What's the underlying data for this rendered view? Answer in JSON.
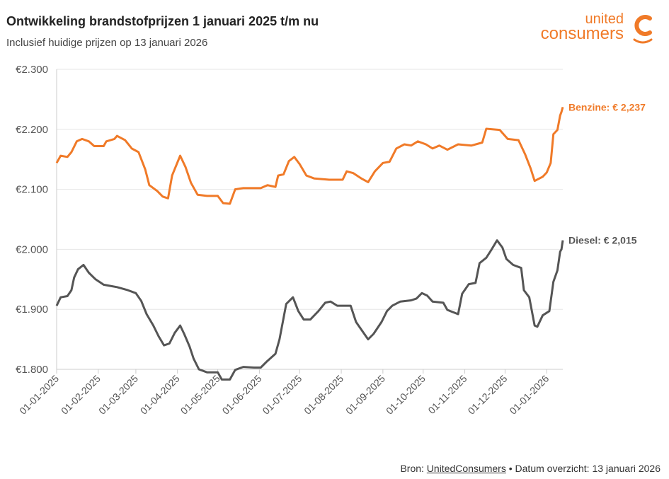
{
  "header": {
    "title": "Ontwikkeling brandstofprijzen 1 januari 2025 t/m nu",
    "subtitle": "Inclusief huidige prijzen op 13 januari 2026"
  },
  "logo": {
    "line1": "united",
    "line2": "consumers",
    "color": "#F07A28"
  },
  "footer": {
    "prefix": "Bron: ",
    "link": "UnitedConsumers",
    "suffix": " • Datum overzicht: 13 januari 2026"
  },
  "chart_data": {
    "type": "line",
    "title": "Ontwikkeling brandstofprijzen 1 januari 2025 t/m nu",
    "subtitle": "Inclusief huidige prijzen op 13 januari 2026",
    "xlim": [
      "2025-01-01",
      "2026-01-13"
    ],
    "ylim": [
      1.8,
      2.3
    ],
    "y_ticks": [
      "€2.300",
      "€2.200",
      "€2.100",
      "€2.000",
      "€1.900",
      "€1.800"
    ],
    "y_tick_values": [
      2.3,
      2.2,
      2.1,
      2.0,
      1.9,
      1.8
    ],
    "x_ticks": [
      "01-01-2025",
      "01-02-2025",
      "01-03-2025",
      "01-04-2025",
      "01-05-2025",
      "01-06-2025",
      "01-07-2025",
      "01-08-2025",
      "01-09-2025",
      "01-10-2025",
      "01-11-2025",
      "01-12-2025",
      "01-01-2026"
    ],
    "x_tick_dates": [
      "2025-01-01",
      "2025-02-01",
      "2025-03-01",
      "2025-04-01",
      "2025-05-01",
      "2025-06-01",
      "2025-07-01",
      "2025-08-01",
      "2025-09-01",
      "2025-10-01",
      "2025-11-01",
      "2025-12-01",
      "2026-01-01"
    ],
    "grid": "horizontal",
    "series": [
      {
        "name": "Benzine",
        "label": "Benzine: € 2,237",
        "color": "#F07A28",
        "points": [
          [
            "2025-01-01",
            2.144
          ],
          [
            "2025-01-04",
            2.156
          ],
          [
            "2025-01-09",
            2.154
          ],
          [
            "2025-01-12",
            2.162
          ],
          [
            "2025-01-16",
            2.18
          ],
          [
            "2025-01-20",
            2.184
          ],
          [
            "2025-01-25",
            2.18
          ],
          [
            "2025-01-29",
            2.172
          ],
          [
            "2025-02-05",
            2.172
          ],
          [
            "2025-02-07",
            2.18
          ],
          [
            "2025-02-13",
            2.184
          ],
          [
            "2025-02-15",
            2.189
          ],
          [
            "2025-02-21",
            2.182
          ],
          [
            "2025-02-26",
            2.168
          ],
          [
            "2025-03-03",
            2.162
          ],
          [
            "2025-03-08",
            2.133
          ],
          [
            "2025-03-11",
            2.107
          ],
          [
            "2025-03-17",
            2.097
          ],
          [
            "2025-03-21",
            2.088
          ],
          [
            "2025-03-25",
            2.085
          ],
          [
            "2025-03-28",
            2.123
          ],
          [
            "2025-04-03",
            2.156
          ],
          [
            "2025-04-07",
            2.137
          ],
          [
            "2025-04-11",
            2.111
          ],
          [
            "2025-04-16",
            2.091
          ],
          [
            "2025-04-23",
            2.089
          ],
          [
            "2025-05-01",
            2.089
          ],
          [
            "2025-05-05",
            2.077
          ],
          [
            "2025-05-10",
            2.076
          ],
          [
            "2025-05-14",
            2.1
          ],
          [
            "2025-05-20",
            2.102
          ],
          [
            "2025-06-02",
            2.102
          ],
          [
            "2025-06-07",
            2.107
          ],
          [
            "2025-06-13",
            2.104
          ],
          [
            "2025-06-15",
            2.123
          ],
          [
            "2025-06-19",
            2.125
          ],
          [
            "2025-06-23",
            2.147
          ],
          [
            "2025-06-27",
            2.154
          ],
          [
            "2025-07-01",
            2.142
          ],
          [
            "2025-07-06",
            2.123
          ],
          [
            "2025-07-12",
            2.118
          ],
          [
            "2025-07-23",
            2.116
          ],
          [
            "2025-08-02",
            2.116
          ],
          [
            "2025-08-05",
            2.13
          ],
          [
            "2025-08-10",
            2.127
          ],
          [
            "2025-08-16",
            2.118
          ],
          [
            "2025-08-21",
            2.112
          ],
          [
            "2025-08-26",
            2.13
          ],
          [
            "2025-09-01",
            2.144
          ],
          [
            "2025-09-06",
            2.146
          ],
          [
            "2025-09-11",
            2.168
          ],
          [
            "2025-09-17",
            2.175
          ],
          [
            "2025-09-22",
            2.173
          ],
          [
            "2025-09-27",
            2.18
          ],
          [
            "2025-10-03",
            2.175
          ],
          [
            "2025-10-08",
            2.168
          ],
          [
            "2025-10-13",
            2.173
          ],
          [
            "2025-10-19",
            2.166
          ],
          [
            "2025-10-27",
            2.175
          ],
          [
            "2025-11-06",
            2.173
          ],
          [
            "2025-11-14",
            2.178
          ],
          [
            "2025-11-17",
            2.201
          ],
          [
            "2025-11-27",
            2.199
          ],
          [
            "2025-12-03",
            2.184
          ],
          [
            "2025-12-11",
            2.182
          ],
          [
            "2025-12-16",
            2.158
          ],
          [
            "2025-12-20",
            2.135
          ],
          [
            "2025-12-23",
            2.114
          ],
          [
            "2025-12-29",
            2.121
          ],
          [
            "2026-01-01",
            2.128
          ],
          [
            "2026-01-04",
            2.144
          ],
          [
            "2026-01-06",
            2.192
          ],
          [
            "2026-01-09",
            2.199
          ],
          [
            "2026-01-11",
            2.223
          ],
          [
            "2026-01-12",
            2.229
          ],
          [
            "2026-01-13",
            2.237
          ]
        ]
      },
      {
        "name": "Diesel",
        "label": "Diesel: € 2,015",
        "color": "#555555",
        "points": [
          [
            "2025-01-01",
            1.906
          ],
          [
            "2025-01-04",
            1.92
          ],
          [
            "2025-01-09",
            1.922
          ],
          [
            "2025-01-12",
            1.932
          ],
          [
            "2025-01-14",
            1.953
          ],
          [
            "2025-01-17",
            1.967
          ],
          [
            "2025-01-21",
            1.974
          ],
          [
            "2025-01-25",
            1.961
          ],
          [
            "2025-01-30",
            1.95
          ],
          [
            "2025-02-05",
            1.941
          ],
          [
            "2025-02-10",
            1.939
          ],
          [
            "2025-02-15",
            1.937
          ],
          [
            "2025-02-23",
            1.932
          ],
          [
            "2025-03-01",
            1.927
          ],
          [
            "2025-03-05",
            1.914
          ],
          [
            "2025-03-09",
            1.892
          ],
          [
            "2025-03-14",
            1.873
          ],
          [
            "2025-03-18",
            1.855
          ],
          [
            "2025-03-22",
            1.84
          ],
          [
            "2025-03-26",
            1.843
          ],
          [
            "2025-03-30",
            1.861
          ],
          [
            "2025-04-03",
            1.873
          ],
          [
            "2025-04-06",
            1.859
          ],
          [
            "2025-04-10",
            1.838
          ],
          [
            "2025-04-13",
            1.818
          ],
          [
            "2025-04-17",
            1.8
          ],
          [
            "2025-04-23",
            1.795
          ],
          [
            "2025-05-01",
            1.795
          ],
          [
            "2025-05-04",
            1.783
          ],
          [
            "2025-05-10",
            1.783
          ],
          [
            "2025-05-14",
            1.799
          ],
          [
            "2025-05-20",
            1.804
          ],
          [
            "2025-05-28",
            1.803
          ],
          [
            "2025-06-02",
            1.803
          ],
          [
            "2025-06-07",
            1.814
          ],
          [
            "2025-06-13",
            1.826
          ],
          [
            "2025-06-16",
            1.85
          ],
          [
            "2025-06-21",
            1.909
          ],
          [
            "2025-06-26",
            1.92
          ],
          [
            "2025-06-30",
            1.897
          ],
          [
            "2025-07-04",
            1.883
          ],
          [
            "2025-07-09",
            1.883
          ],
          [
            "2025-07-15",
            1.897
          ],
          [
            "2025-07-20",
            1.911
          ],
          [
            "2025-07-24",
            1.913
          ],
          [
            "2025-07-29",
            1.906
          ],
          [
            "2025-08-08",
            1.906
          ],
          [
            "2025-08-12",
            1.879
          ],
          [
            "2025-08-16",
            1.866
          ],
          [
            "2025-08-21",
            1.85
          ],
          [
            "2025-08-25",
            1.859
          ],
          [
            "2025-08-31",
            1.879
          ],
          [
            "2025-09-04",
            1.897
          ],
          [
            "2025-09-08",
            1.906
          ],
          [
            "2025-09-14",
            1.913
          ],
          [
            "2025-09-22",
            1.915
          ],
          [
            "2025-09-26",
            1.918
          ],
          [
            "2025-09-30",
            1.927
          ],
          [
            "2025-10-04",
            1.923
          ],
          [
            "2025-10-08",
            1.913
          ],
          [
            "2025-10-16",
            1.911
          ],
          [
            "2025-10-19",
            1.899
          ],
          [
            "2025-10-27",
            1.892
          ],
          [
            "2025-10-30",
            1.926
          ],
          [
            "2025-11-04",
            1.942
          ],
          [
            "2025-11-09",
            1.944
          ],
          [
            "2025-11-12",
            1.977
          ],
          [
            "2025-11-17",
            1.986
          ],
          [
            "2025-11-21",
            2.0
          ],
          [
            "2025-11-25",
            2.015
          ],
          [
            "2025-11-29",
            2.003
          ],
          [
            "2025-12-02",
            1.984
          ],
          [
            "2025-12-07",
            1.974
          ],
          [
            "2025-12-13",
            1.969
          ],
          [
            "2025-12-15",
            1.932
          ],
          [
            "2025-12-19",
            1.92
          ],
          [
            "2025-12-23",
            1.873
          ],
          [
            "2025-12-25",
            1.871
          ],
          [
            "2025-12-29",
            1.89
          ],
          [
            "2026-01-03",
            1.897
          ],
          [
            "2026-01-06",
            1.946
          ],
          [
            "2026-01-09",
            1.965
          ],
          [
            "2026-01-11",
            1.996
          ],
          [
            "2026-01-12",
            2.0
          ],
          [
            "2026-01-13",
            2.015
          ]
        ]
      }
    ]
  }
}
